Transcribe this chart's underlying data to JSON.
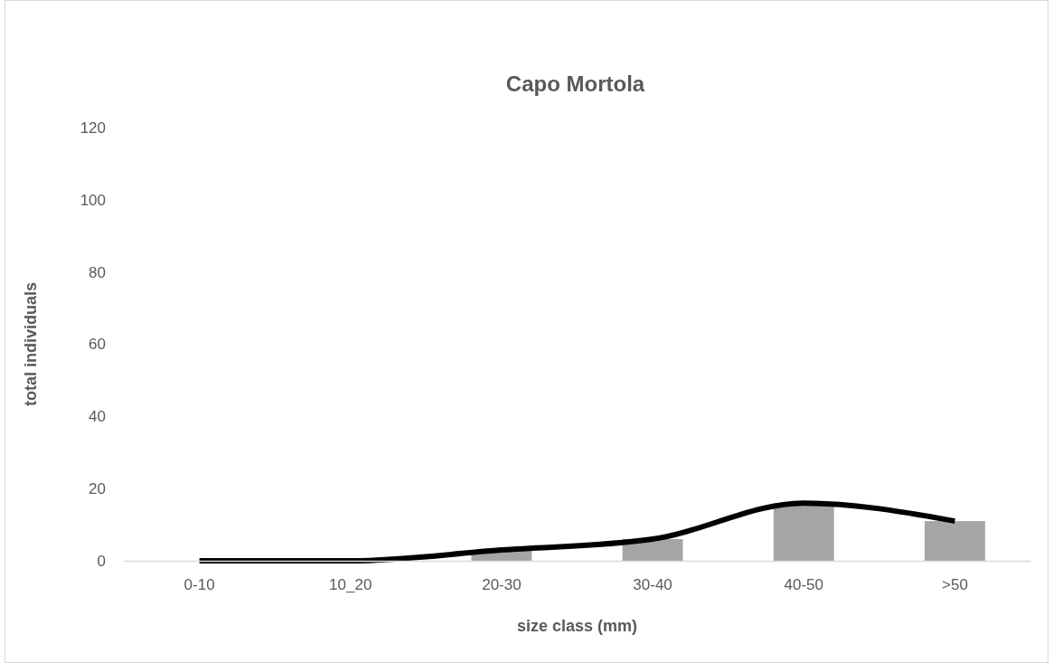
{
  "chart_data": {
    "type": "bar",
    "title": "Capo Mortola",
    "xlabel": "size class (mm)",
    "ylabel": "total individuals",
    "categories": [
      "0-10",
      "10_20",
      "20-30",
      "30-40",
      "40-50",
      ">50"
    ],
    "series": [
      {
        "color": "#a5a5a5",
        "values": [
          0,
          0,
          3,
          6,
          16,
          11
        ]
      },
      {
        "type": "line",
        "color": "#000000",
        "values": [
          0,
          0,
          3,
          6,
          16,
          11
        ]
      }
    ],
    "ylim": [
      0,
      120
    ],
    "yticks": [
      0,
      20,
      40,
      60,
      80,
      100,
      120
    ]
  }
}
